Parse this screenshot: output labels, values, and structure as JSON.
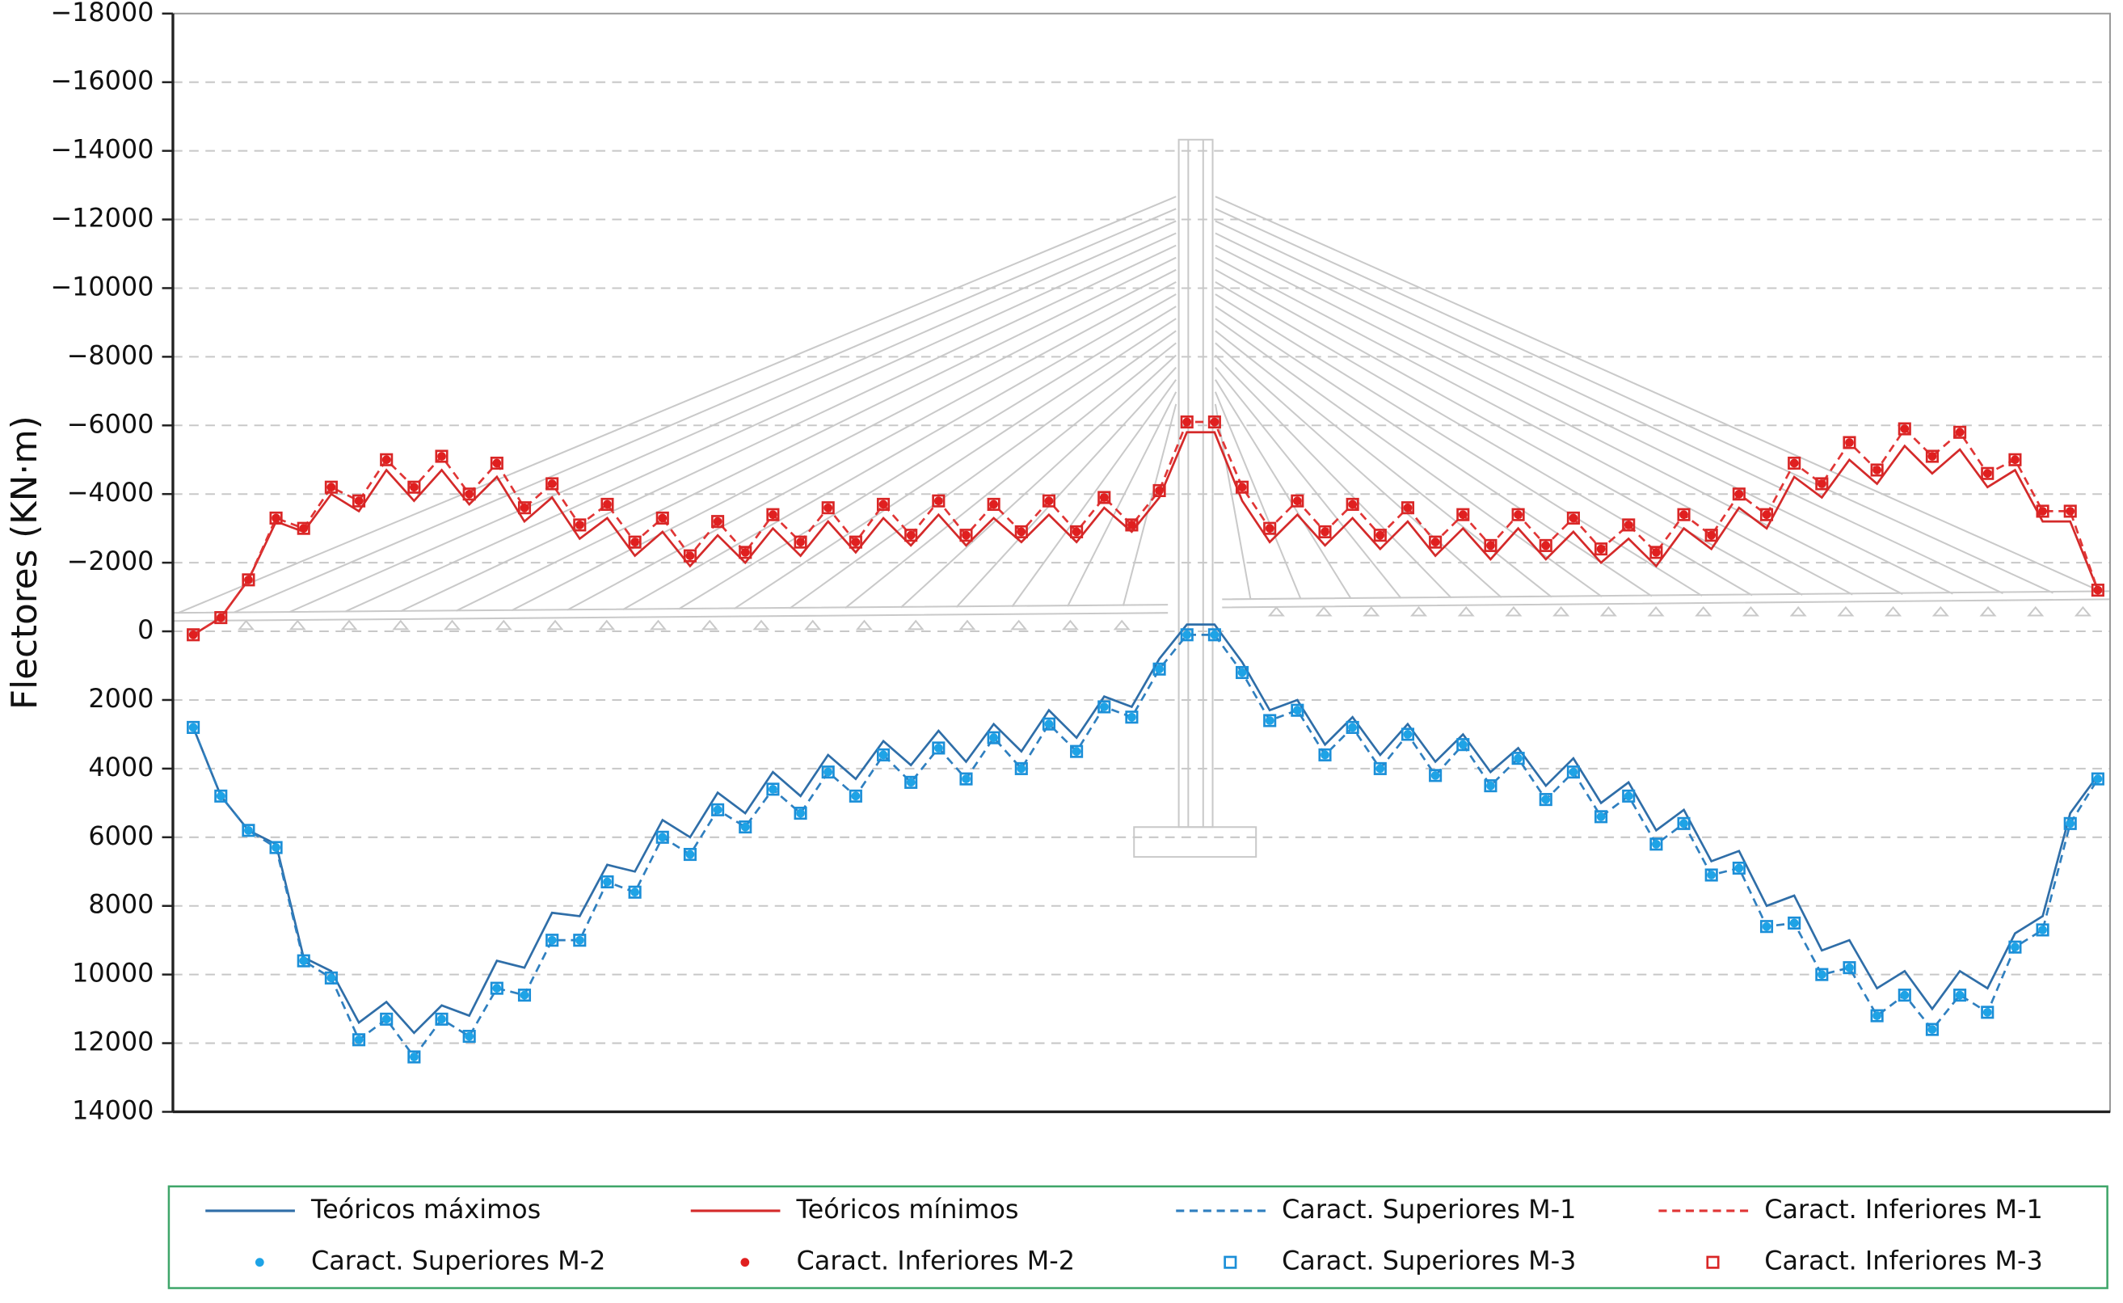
{
  "chart_data": {
    "type": "line",
    "ylabel": "Flectores (KN·m)",
    "ylim": [
      -18000,
      14000
    ],
    "inverted_y": true,
    "grid": true,
    "legend": "bottom",
    "yticks": [
      {
        "value": -18000,
        "label": "−18000"
      },
      {
        "value": -16000,
        "label": "−16000"
      },
      {
        "value": -14000,
        "label": "−14000"
      },
      {
        "value": -12000,
        "label": "−12000"
      },
      {
        "value": -10000,
        "label": "−10000"
      },
      {
        "value": -8000,
        "label": "−8000"
      },
      {
        "value": -6000,
        "label": "−6000"
      },
      {
        "value": -4000,
        "label": "−4000"
      },
      {
        "value": -2000,
        "label": "−2000"
      },
      0,
      2000,
      4000,
      6000,
      8000,
      10000,
      12000,
      14000
    ],
    "categories": [
      null,
      null,
      null,
      null,
      null,
      null,
      null,
      null,
      null,
      null,
      null,
      null,
      null,
      null,
      null,
      null,
      null,
      null,
      null,
      null,
      null,
      null,
      null,
      null,
      null,
      null,
      null,
      null,
      null,
      null,
      null,
      null,
      null,
      null,
      null,
      null,
      null,
      null,
      null,
      null,
      null,
      null,
      null,
      null,
      null,
      null,
      null,
      null,
      null,
      null,
      null,
      null,
      null,
      null,
      null,
      null,
      null,
      null,
      null,
      null,
      null,
      null,
      null,
      null,
      null,
      null,
      null,
      null,
      null,
      null
    ],
    "series": [
      {
        "name": "Teóricos máximos",
        "style": "solid",
        "color": "#2f6ea8",
        "values": [
          2800,
          4800,
          5800,
          6200,
          9500,
          9900,
          11400,
          10800,
          11700,
          10900,
          11200,
          9600,
          9800,
          8200,
          8300,
          6800,
          7000,
          5500,
          6000,
          4700,
          5300,
          4100,
          4800,
          3600,
          4300,
          3200,
          3900,
          2900,
          3800,
          2700,
          3500,
          2300,
          3100,
          1900,
          2200,
          800,
          -200,
          -200,
          900,
          2300,
          2000,
          3300,
          2500,
          3600,
          2700,
          3800,
          3000,
          4100,
          3400,
          4500,
          3700,
          5000,
          4400,
          5800,
          5200,
          6700,
          6400,
          8000,
          7700,
          9300,
          9000,
          10400,
          9900,
          11000,
          9900,
          10400,
          8800,
          8300,
          5300,
          4200
        ]
      },
      {
        "name": "Teóricos mínimos",
        "style": "solid",
        "color": "#d42a2a",
        "values": [
          100,
          -400,
          -1500,
          -3200,
          -2900,
          -4000,
          -3500,
          -4700,
          -3800,
          -4700,
          -3700,
          -4500,
          -3200,
          -3900,
          -2700,
          -3300,
          -2200,
          -2900,
          -1900,
          -2800,
          -2000,
          -3000,
          -2200,
          -3200,
          -2300,
          -3300,
          -2500,
          -3400,
          -2500,
          -3300,
          -2600,
          -3400,
          -2600,
          -3600,
          -2900,
          -3900,
          -5800,
          -5800,
          -3800,
          -2600,
          -3400,
          -2500,
          -3300,
          -2400,
          -3200,
          -2200,
          -3000,
          -2100,
          -3000,
          -2100,
          -2900,
          -2000,
          -2700,
          -1900,
          -3000,
          -2400,
          -3600,
          -3000,
          -4500,
          -3900,
          -5000,
          -4300,
          -5400,
          -4600,
          -5300,
          -4200,
          -4700,
          -3200,
          -3200,
          -1200
        ]
      },
      {
        "name": "Caract. Superiores M-1",
        "style": "dashed",
        "color": "#2f7fbf",
        "values": [
          2800,
          4800,
          5800,
          6300,
          9600,
          10100,
          11900,
          11300,
          12400,
          11300,
          11800,
          10400,
          10600,
          9000,
          9000,
          7300,
          7600,
          6000,
          6500,
          5200,
          5700,
          4600,
          5300,
          4100,
          4800,
          3600,
          4400,
          3400,
          4300,
          3100,
          4000,
          2700,
          3500,
          2200,
          2500,
          1100,
          100,
          100,
          1200,
          2600,
          2300,
          3600,
          2800,
          4000,
          3000,
          4200,
          3300,
          4500,
          3700,
          4900,
          4100,
          5400,
          4800,
          6200,
          5600,
          7100,
          6900,
          8600,
          8500,
          10000,
          9800,
          11200,
          10600,
          11600,
          10600,
          11100,
          9200,
          8700,
          5600,
          4300
        ]
      },
      {
        "name": "Caract. Inferiores M-1",
        "style": "dashed",
        "color": "#e03535",
        "values": [
          100,
          -400,
          -1500,
          -3300,
          -3000,
          -4200,
          -3800,
          -5000,
          -4200,
          -5100,
          -4000,
          -4900,
          -3600,
          -4300,
          -3100,
          -3700,
          -2600,
          -3300,
          -2200,
          -3200,
          -2300,
          -3400,
          -2600,
          -3600,
          -2600,
          -3700,
          -2800,
          -3800,
          -2800,
          -3700,
          -2900,
          -3800,
          -2900,
          -3900,
          -3100,
          -4100,
          -6100,
          -6100,
          -4200,
          -3000,
          -3800,
          -2900,
          -3700,
          -2800,
          -3600,
          -2600,
          -3400,
          -2500,
          -3400,
          -2500,
          -3300,
          -2400,
          -3100,
          -2300,
          -3400,
          -2800,
          -4000,
          -3400,
          -4900,
          -4300,
          -5500,
          -4700,
          -5900,
          -5100,
          -5800,
          -4600,
          -5000,
          -3500,
          -3500,
          -1200
        ]
      },
      {
        "name": "Caract. Superiores M-2",
        "style": "dot",
        "color": "#1ea3e6",
        "values": [
          2800,
          4800,
          5800,
          6300,
          9600,
          10100,
          11900,
          11300,
          12400,
          11300,
          11800,
          10400,
          10600,
          9000,
          9000,
          7300,
          7600,
          6000,
          6500,
          5200,
          5700,
          4600,
          5300,
          4100,
          4800,
          3600,
          4400,
          3400,
          4300,
          3100,
          4000,
          2700,
          3500,
          2200,
          2500,
          1100,
          100,
          100,
          1200,
          2600,
          2300,
          3600,
          2800,
          4000,
          3000,
          4200,
          3300,
          4500,
          3700,
          4900,
          4100,
          5400,
          4800,
          6200,
          5600,
          7100,
          6900,
          8600,
          8500,
          10000,
          9800,
          11200,
          10600,
          11600,
          10600,
          11100,
          9200,
          8700,
          5600,
          4300
        ]
      },
      {
        "name": "Caract. Inferiores M-2",
        "style": "dot",
        "color": "#e01f1f",
        "values": [
          100,
          -400,
          -1500,
          -3300,
          -3000,
          -4200,
          -3800,
          -5000,
          -4200,
          -5100,
          -4000,
          -4900,
          -3600,
          -4300,
          -3100,
          -3700,
          -2600,
          -3300,
          -2200,
          -3200,
          -2300,
          -3400,
          -2600,
          -3600,
          -2600,
          -3700,
          -2800,
          -3800,
          -2800,
          -3700,
          -2900,
          -3800,
          -2900,
          -3900,
          -3100,
          -4100,
          -6100,
          -6100,
          -4200,
          -3000,
          -3800,
          -2900,
          -3700,
          -2800,
          -3600,
          -2600,
          -3400,
          -2500,
          -3400,
          -2500,
          -3300,
          -2400,
          -3100,
          -2300,
          -3400,
          -2800,
          -4000,
          -3400,
          -4900,
          -4300,
          -5500,
          -4700,
          -5900,
          -5100,
          -5800,
          -4600,
          -5000,
          -3500,
          -3500,
          -1200
        ]
      },
      {
        "name": "Caract. Superiores M-3",
        "style": "square",
        "color": "#1b8fd8",
        "values": [
          2800,
          4800,
          5800,
          6300,
          9600,
          10100,
          11900,
          11300,
          12400,
          11300,
          11800,
          10400,
          10600,
          9000,
          9000,
          7300,
          7600,
          6000,
          6500,
          5200,
          5700,
          4600,
          5300,
          4100,
          4800,
          3600,
          4400,
          3400,
          4300,
          3100,
          4000,
          2700,
          3500,
          2200,
          2500,
          1100,
          100,
          100,
          1200,
          2600,
          2300,
          3600,
          2800,
          4000,
          3000,
          4200,
          3300,
          4500,
          3700,
          4900,
          4100,
          5400,
          4800,
          6200,
          5600,
          7100,
          6900,
          8600,
          8500,
          10000,
          9800,
          11200,
          10600,
          11600,
          10600,
          11100,
          9200,
          8700,
          5600,
          4300
        ]
      },
      {
        "name": "Caract. Inferiores M-3",
        "style": "square",
        "color": "#d92626",
        "values": [
          100,
          -400,
          -1500,
          -3300,
          -3000,
          -4200,
          -3800,
          -5000,
          -4200,
          -5100,
          -4000,
          -4900,
          -3600,
          -4300,
          -3100,
          -3700,
          -2600,
          -3300,
          -2200,
          -3200,
          -2300,
          -3400,
          -2600,
          -3600,
          -2600,
          -3700,
          -2800,
          -3800,
          -2800,
          -3700,
          -2900,
          -3800,
          -2900,
          -3900,
          -3100,
          -4100,
          -6100,
          -6100,
          -4200,
          -3000,
          -3800,
          -2900,
          -3700,
          -2800,
          -3600,
          -2600,
          -3400,
          -2500,
          -3400,
          -2500,
          -3300,
          -2400,
          -3100,
          -2300,
          -3400,
          -2800,
          -4000,
          -3400,
          -4900,
          -4300,
          -5500,
          -4700,
          -5900,
          -5100,
          -5800,
          -4600,
          -5000,
          -3500,
          -3500,
          -1200
        ]
      }
    ]
  }
}
